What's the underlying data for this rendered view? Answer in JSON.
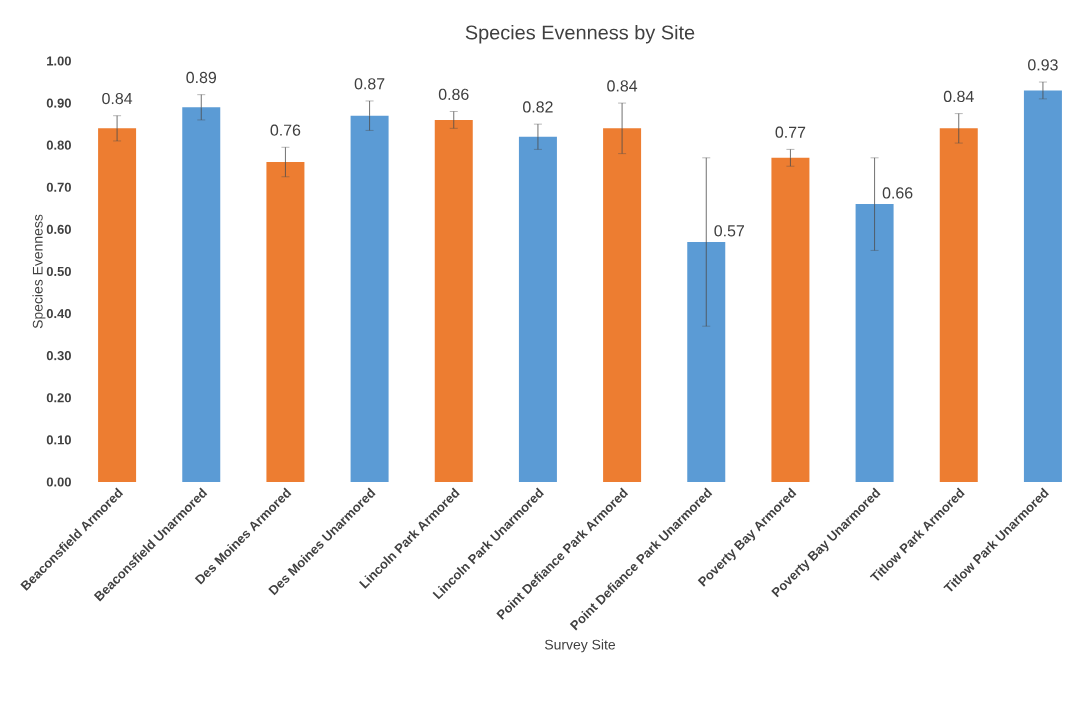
{
  "chart_data": {
    "type": "bar",
    "title": "Species Evenness by Site",
    "xlabel": "Survey Site",
    "ylabel": "Species Evenness",
    "categories": [
      "Beaconsfield Armored",
      "Beaconsfield Unarmored",
      "Des Moines Armored",
      "Des Moines Unarmored",
      "Lincoln Park Armored",
      "Lincoln Park Unarmored",
      "Point Defiance Park Armored",
      "Point Defiance Park Unarmored",
      "Poverty Bay Armored",
      "Poverty Bay Unarmored",
      "Titlow Park Armored",
      "Titlow Park Unarmored"
    ],
    "values": [
      0.84,
      0.89,
      0.76,
      0.87,
      0.86,
      0.82,
      0.84,
      0.57,
      0.77,
      0.66,
      0.84,
      0.93
    ],
    "value_labels": [
      "0.84",
      "0.89",
      "0.76",
      "0.87",
      "0.86",
      "0.82",
      "0.84",
      "0.57",
      "0.77",
      "0.66",
      "0.84",
      "0.93"
    ],
    "errors": [
      0.03,
      0.03,
      0.035,
      0.035,
      0.02,
      0.03,
      0.06,
      0.2,
      0.02,
      0.11,
      0.035,
      0.02
    ],
    "colors": [
      "#ed7d31",
      "#5b9bd5",
      "#ed7d31",
      "#5b9bd5",
      "#ed7d31",
      "#5b9bd5",
      "#ed7d31",
      "#5b9bd5",
      "#ed7d31",
      "#5b9bd5",
      "#ed7d31",
      "#5b9bd5"
    ],
    "ylim": [
      0,
      1
    ],
    "yticks": [
      {
        "value": 0,
        "label": "0.00"
      },
      {
        "value": 0.1,
        "label": "0.10"
      },
      {
        "value": 0.2,
        "label": "0.20"
      },
      {
        "value": 0.3,
        "label": "0.30"
      },
      {
        "value": 0.4,
        "label": "0.40"
      },
      {
        "value": 0.5,
        "label": "0.50"
      },
      {
        "value": 0.6,
        "label": "0.60"
      },
      {
        "value": 0.7,
        "label": "0.70"
      },
      {
        "value": 0.8,
        "label": "0.80"
      },
      {
        "value": 0.9,
        "label": "0.90"
      },
      {
        "value": 1,
        "label": "1.00"
      }
    ]
  }
}
